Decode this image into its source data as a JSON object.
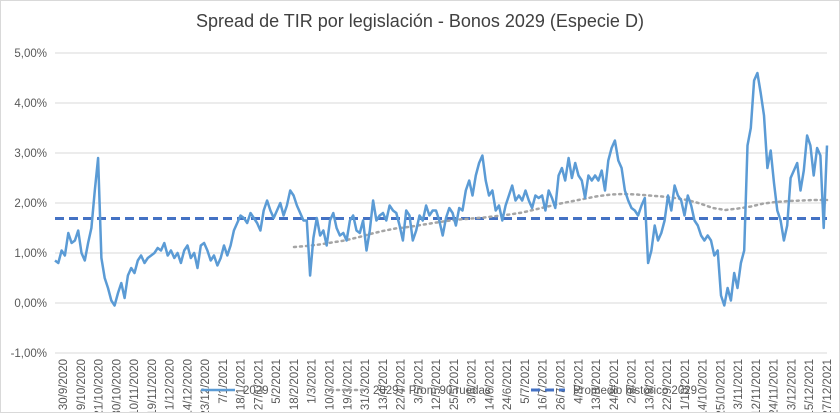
{
  "chart_data": {
    "type": "line",
    "title": "Spread de TIR por legislación - Bonos 2029 (Especie D)",
    "xlabel": "",
    "ylabel": "",
    "ylim": [
      -0.01,
      0.05
    ],
    "y_ticks": [
      "-1,00%",
      "0,00%",
      "1,00%",
      "2,00%",
      "3,00%",
      "4,00%",
      "5,00%"
    ],
    "x_ticks": [
      "30/9/2020",
      "9/10/2020",
      "21/10/2020",
      "30/10/2020",
      "10/11/2020",
      "19/11/2020",
      "1/12/2020",
      "14/12/2020",
      "23/12/2020",
      "7/1/2021",
      "18/1/2021",
      "27/1/2021",
      "5/2/2021",
      "18/2/2021",
      "1/3/2021",
      "10/3/2021",
      "19/3/2021",
      "31/3/2021",
      "13/4/2021",
      "22/4/2021",
      "3/5/2021",
      "12/5/2021",
      "25/5/2021",
      "3/6/2021",
      "14/6/2021",
      "24/6/2021",
      "5/7/2021",
      "16/7/2021",
      "26/7/2021",
      "4/8/2021",
      "13/8/2021",
      "24/8/2021",
      "2/9/2021",
      "13/9/2021",
      "22/9/2021",
      "1/10/2021",
      "14/10/2021",
      "25/10/2021",
      "3/11/2021",
      "12/11/2021",
      "24/11/2021",
      "3/12/2021",
      "15/12/2021",
      "27/12/2021"
    ],
    "grid": true,
    "legend_position": "bottom",
    "series": [
      {
        "name": "2029",
        "color": "#5b9bd5",
        "style": "solid",
        "values": [
          0.0085,
          0.008,
          0.0105,
          0.0095,
          0.014,
          0.012,
          0.0125,
          0.0145,
          0.01,
          0.0085,
          0.012,
          0.015,
          0.0225,
          0.029,
          0.009,
          0.005,
          0.003,
          0.0005,
          -0.0005,
          0.002,
          0.004,
          0.001,
          0.0055,
          0.007,
          0.006,
          0.0085,
          0.0095,
          0.008,
          0.009,
          0.0095,
          0.01,
          0.011,
          0.0105,
          0.012,
          0.0095,
          0.0105,
          0.009,
          0.01,
          0.008,
          0.0105,
          0.0115,
          0.009,
          0.01,
          0.007,
          0.0115,
          0.012,
          0.0105,
          0.0085,
          0.0095,
          0.0075,
          0.009,
          0.0115,
          0.0095,
          0.0115,
          0.0145,
          0.016,
          0.0175,
          0.017,
          0.016,
          0.018,
          0.017,
          0.016,
          0.0145,
          0.0185,
          0.0205,
          0.0185,
          0.017,
          0.0185,
          0.02,
          0.0175,
          0.0195,
          0.0225,
          0.0215,
          0.0195,
          0.018,
          0.0165,
          0.0165,
          0.0055,
          0.013,
          0.017,
          0.0135,
          0.0145,
          0.0115,
          0.0165,
          0.018,
          0.015,
          0.0135,
          0.014,
          0.0125,
          0.0165,
          0.0175,
          0.0145,
          0.014,
          0.0165,
          0.0105,
          0.0145,
          0.0205,
          0.0165,
          0.0175,
          0.018,
          0.0165,
          0.0195,
          0.0185,
          0.018,
          0.0155,
          0.0125,
          0.0185,
          0.0175,
          0.0125,
          0.0145,
          0.0175,
          0.0165,
          0.0195,
          0.0175,
          0.0185,
          0.0185,
          0.0165,
          0.0135,
          0.017,
          0.019,
          0.018,
          0.0155,
          0.019,
          0.0185,
          0.0225,
          0.0245,
          0.0215,
          0.0255,
          0.028,
          0.0295,
          0.0245,
          0.0215,
          0.0225,
          0.0185,
          0.0195,
          0.0165,
          0.0195,
          0.0215,
          0.0235,
          0.0205,
          0.0215,
          0.0205,
          0.0225,
          0.0205,
          0.019,
          0.0215,
          0.021,
          0.0215,
          0.0185,
          0.0225,
          0.021,
          0.019,
          0.0255,
          0.027,
          0.0245,
          0.029,
          0.025,
          0.028,
          0.0255,
          0.0245,
          0.021,
          0.0255,
          0.0245,
          0.0255,
          0.0245,
          0.0265,
          0.0225,
          0.0285,
          0.031,
          0.0325,
          0.0285,
          0.027,
          0.0225,
          0.0205,
          0.019,
          0.0185,
          0.0175,
          0.0195,
          0.021,
          0.008,
          0.0105,
          0.0155,
          0.0125,
          0.014,
          0.0165,
          0.0215,
          0.0185,
          0.0235,
          0.0215,
          0.0205,
          0.0175,
          0.0215,
          0.0195,
          0.0165,
          0.0155,
          0.0135,
          0.0125,
          0.0135,
          0.0125,
          0.0095,
          0.0105,
          0.0015,
          -0.0005,
          0.003,
          0.0005,
          0.006,
          0.003,
          0.008,
          0.0105,
          0.0315,
          0.035,
          0.0445,
          0.046,
          0.042,
          0.0375,
          0.027,
          0.0305,
          0.024,
          0.0185,
          0.0165,
          0.0125,
          0.0155,
          0.025,
          0.0265,
          0.028,
          0.0225,
          0.0265,
          0.0335,
          0.0315,
          0.0255,
          0.031,
          0.0295,
          0.015,
          0.0315
        ]
      },
      {
        "name": "2029 - Prom 90 ruedas",
        "color": "#a5a5a5",
        "style": "dotted",
        "start_label": "18/2/2021",
        "values": [
          0.0112,
          0.0114,
          0.0117,
          0.0121,
          0.0125,
          0.0131,
          0.0138,
          0.0144,
          0.0149,
          0.0152,
          0.0156,
          0.016,
          0.0164,
          0.0167,
          0.0169,
          0.0171,
          0.0174,
          0.0177,
          0.0181,
          0.0187,
          0.0193,
          0.0199,
          0.0204,
          0.0209,
          0.0214,
          0.0217,
          0.0218,
          0.0217,
          0.0215,
          0.0213,
          0.021,
          0.0206,
          0.0199,
          0.019,
          0.0186,
          0.0189,
          0.0193,
          0.0199,
          0.0202,
          0.0204,
          0.0205,
          0.0206,
          0.0206
        ]
      },
      {
        "name": "Promedio histórico 2029",
        "color": "#4472c4",
        "style": "dashed",
        "value": 0.0169
      }
    ]
  }
}
